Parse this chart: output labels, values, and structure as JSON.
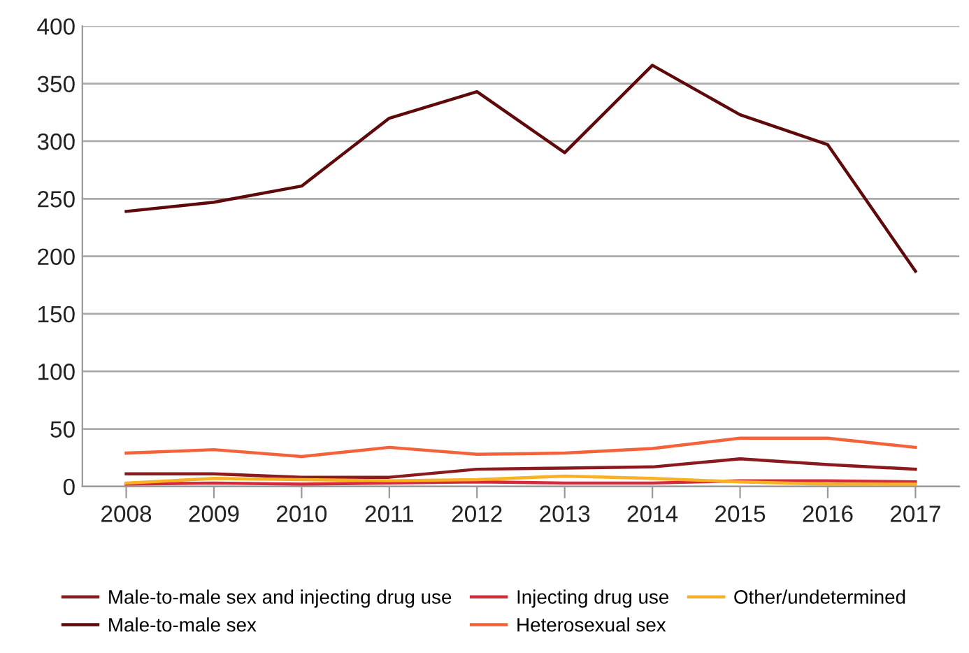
{
  "chart_data": {
    "type": "line",
    "categories": [
      "2008",
      "2009",
      "2010",
      "2011",
      "2012",
      "2013",
      "2014",
      "2015",
      "2016",
      "2017"
    ],
    "series": [
      {
        "name": "Male-to-male sex and injecting drug use",
        "color": "#8b1a1e",
        "values": [
          11,
          11,
          8,
          8,
          15,
          16,
          17,
          24,
          19,
          15
        ]
      },
      {
        "name": "Male-to-male sex",
        "color": "#5e0a0a",
        "values": [
          239,
          247,
          261,
          320,
          343,
          290,
          366,
          323,
          297,
          187
        ]
      },
      {
        "name": "Injecting drug use",
        "color": "#d42a3a",
        "values": [
          2,
          3,
          2,
          3,
          4,
          3,
          3,
          5,
          5,
          4
        ]
      },
      {
        "name": "Heterosexual sex",
        "color": "#f4623a",
        "values": [
          29,
          32,
          26,
          34,
          28,
          29,
          33,
          42,
          42,
          34
        ]
      },
      {
        "name": "Other/undetermined",
        "color": "#f9b022",
        "values": [
          3,
          7,
          6,
          5,
          6,
          9,
          7,
          4,
          2,
          2
        ]
      }
    ],
    "ylim": [
      0,
      400
    ],
    "yticks": [
      0,
      50,
      100,
      150,
      200,
      250,
      300,
      350,
      400
    ],
    "grid": "y",
    "legend": "bottom",
    "marker": "none",
    "line_style": "solid"
  }
}
